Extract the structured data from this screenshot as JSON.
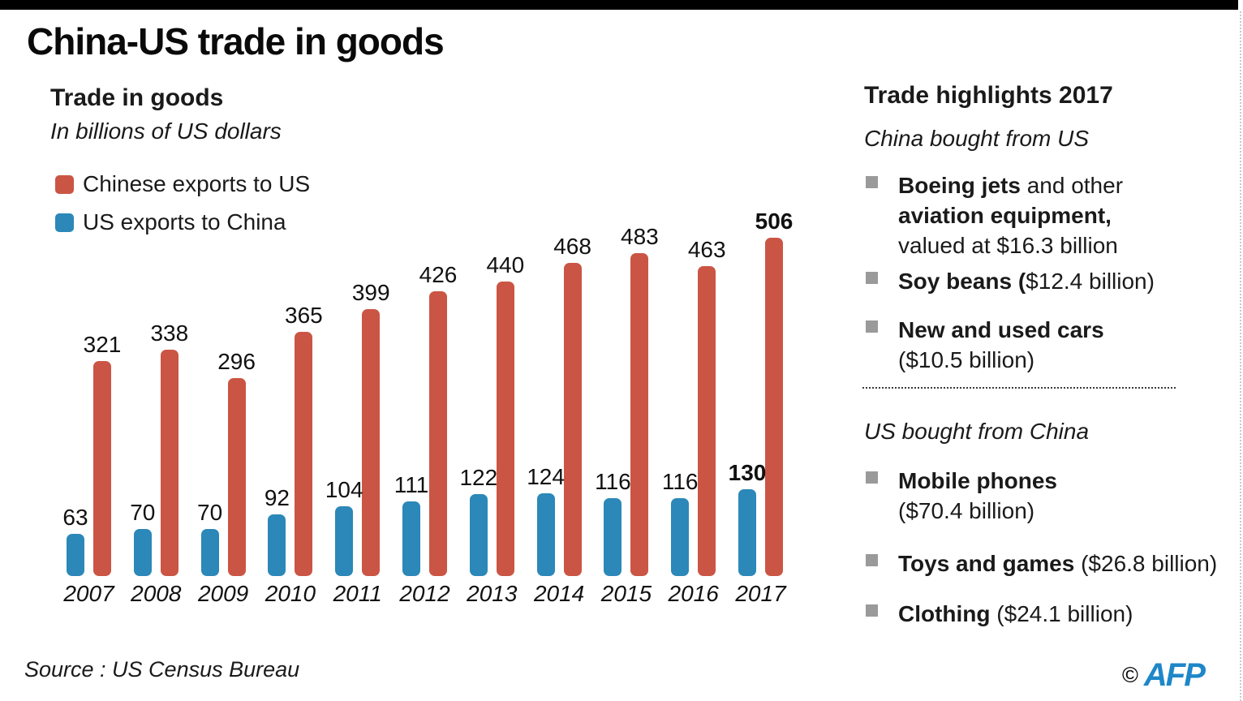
{
  "colors": {
    "red": "#cb5544",
    "blue": "#2b88b8",
    "bullet_gray": "#9a9a9a",
    "afp_blue": "#1e87c8",
    "top_bar": "#000000"
  },
  "header": {
    "title": "China-US trade in goods"
  },
  "chart_data": {
    "type": "bar",
    "title": "Trade in goods",
    "subtitle": "In billions of US dollars",
    "categories": [
      "2007",
      "2008",
      "2009",
      "2010",
      "2011",
      "2012",
      "2013",
      "2014",
      "2015",
      "2016",
      "2017"
    ],
    "series": [
      {
        "name": "Chinese exports to US",
        "color": "#cb5544",
        "values": [
          321,
          338,
          296,
          365,
          399,
          426,
          440,
          468,
          483,
          463,
          506
        ]
      },
      {
        "name": "US exports to China",
        "color": "#2b88b8",
        "values": [
          63,
          70,
          70,
          92,
          104,
          111,
          122,
          124,
          116,
          116,
          130
        ]
      }
    ],
    "ylim": [
      0,
      560
    ],
    "grid": false,
    "axes_shown": false,
    "value_labels": true,
    "emphasized_category": "2017",
    "legend_position": "top-left"
  },
  "highlights": {
    "title": "Trade highlights 2017",
    "sections": [
      {
        "heading": "China bought from US",
        "items": [
          {
            "lines": [
              [
                {
                  "t": "Boeing jets",
                  "b": true
                },
                {
                  "t": " and other",
                  "b": false
                }
              ],
              [
                {
                  "t": "aviation equipment,",
                  "b": true
                }
              ],
              [
                {
                  "t": "valued at $16.3 billion",
                  "b": false
                }
              ]
            ]
          },
          {
            "lines": [
              [
                {
                  "t": "Soy beans (",
                  "b": true
                },
                {
                  "t": "$12.4 billion)",
                  "b": false
                }
              ]
            ]
          },
          {
            "lines": [
              [
                {
                  "t": "New and used cars",
                  "b": true
                }
              ],
              [
                {
                  "t": "($10.5 billion)",
                  "b": false
                }
              ]
            ]
          }
        ]
      },
      {
        "heading": "US bought from China",
        "items": [
          {
            "lines": [
              [
                {
                  "t": "Mobile phones",
                  "b": true
                }
              ],
              [
                {
                  "t": "($70.4 billion)",
                  "b": false
                }
              ]
            ]
          },
          {
            "lines": [
              [
                {
                  "t": "Toys and games",
                  "b": true
                },
                {
                  "t": " ($26.8 billion)",
                  "b": false
                }
              ]
            ]
          },
          {
            "lines": [
              [
                {
                  "t": "Clothing",
                  "b": true
                },
                {
                  "t": " ($24.1 billion)",
                  "b": false
                }
              ]
            ]
          }
        ]
      }
    ]
  },
  "footer": {
    "source": "Source : US Census Bureau",
    "copyright": "©",
    "agency": "AFP"
  }
}
